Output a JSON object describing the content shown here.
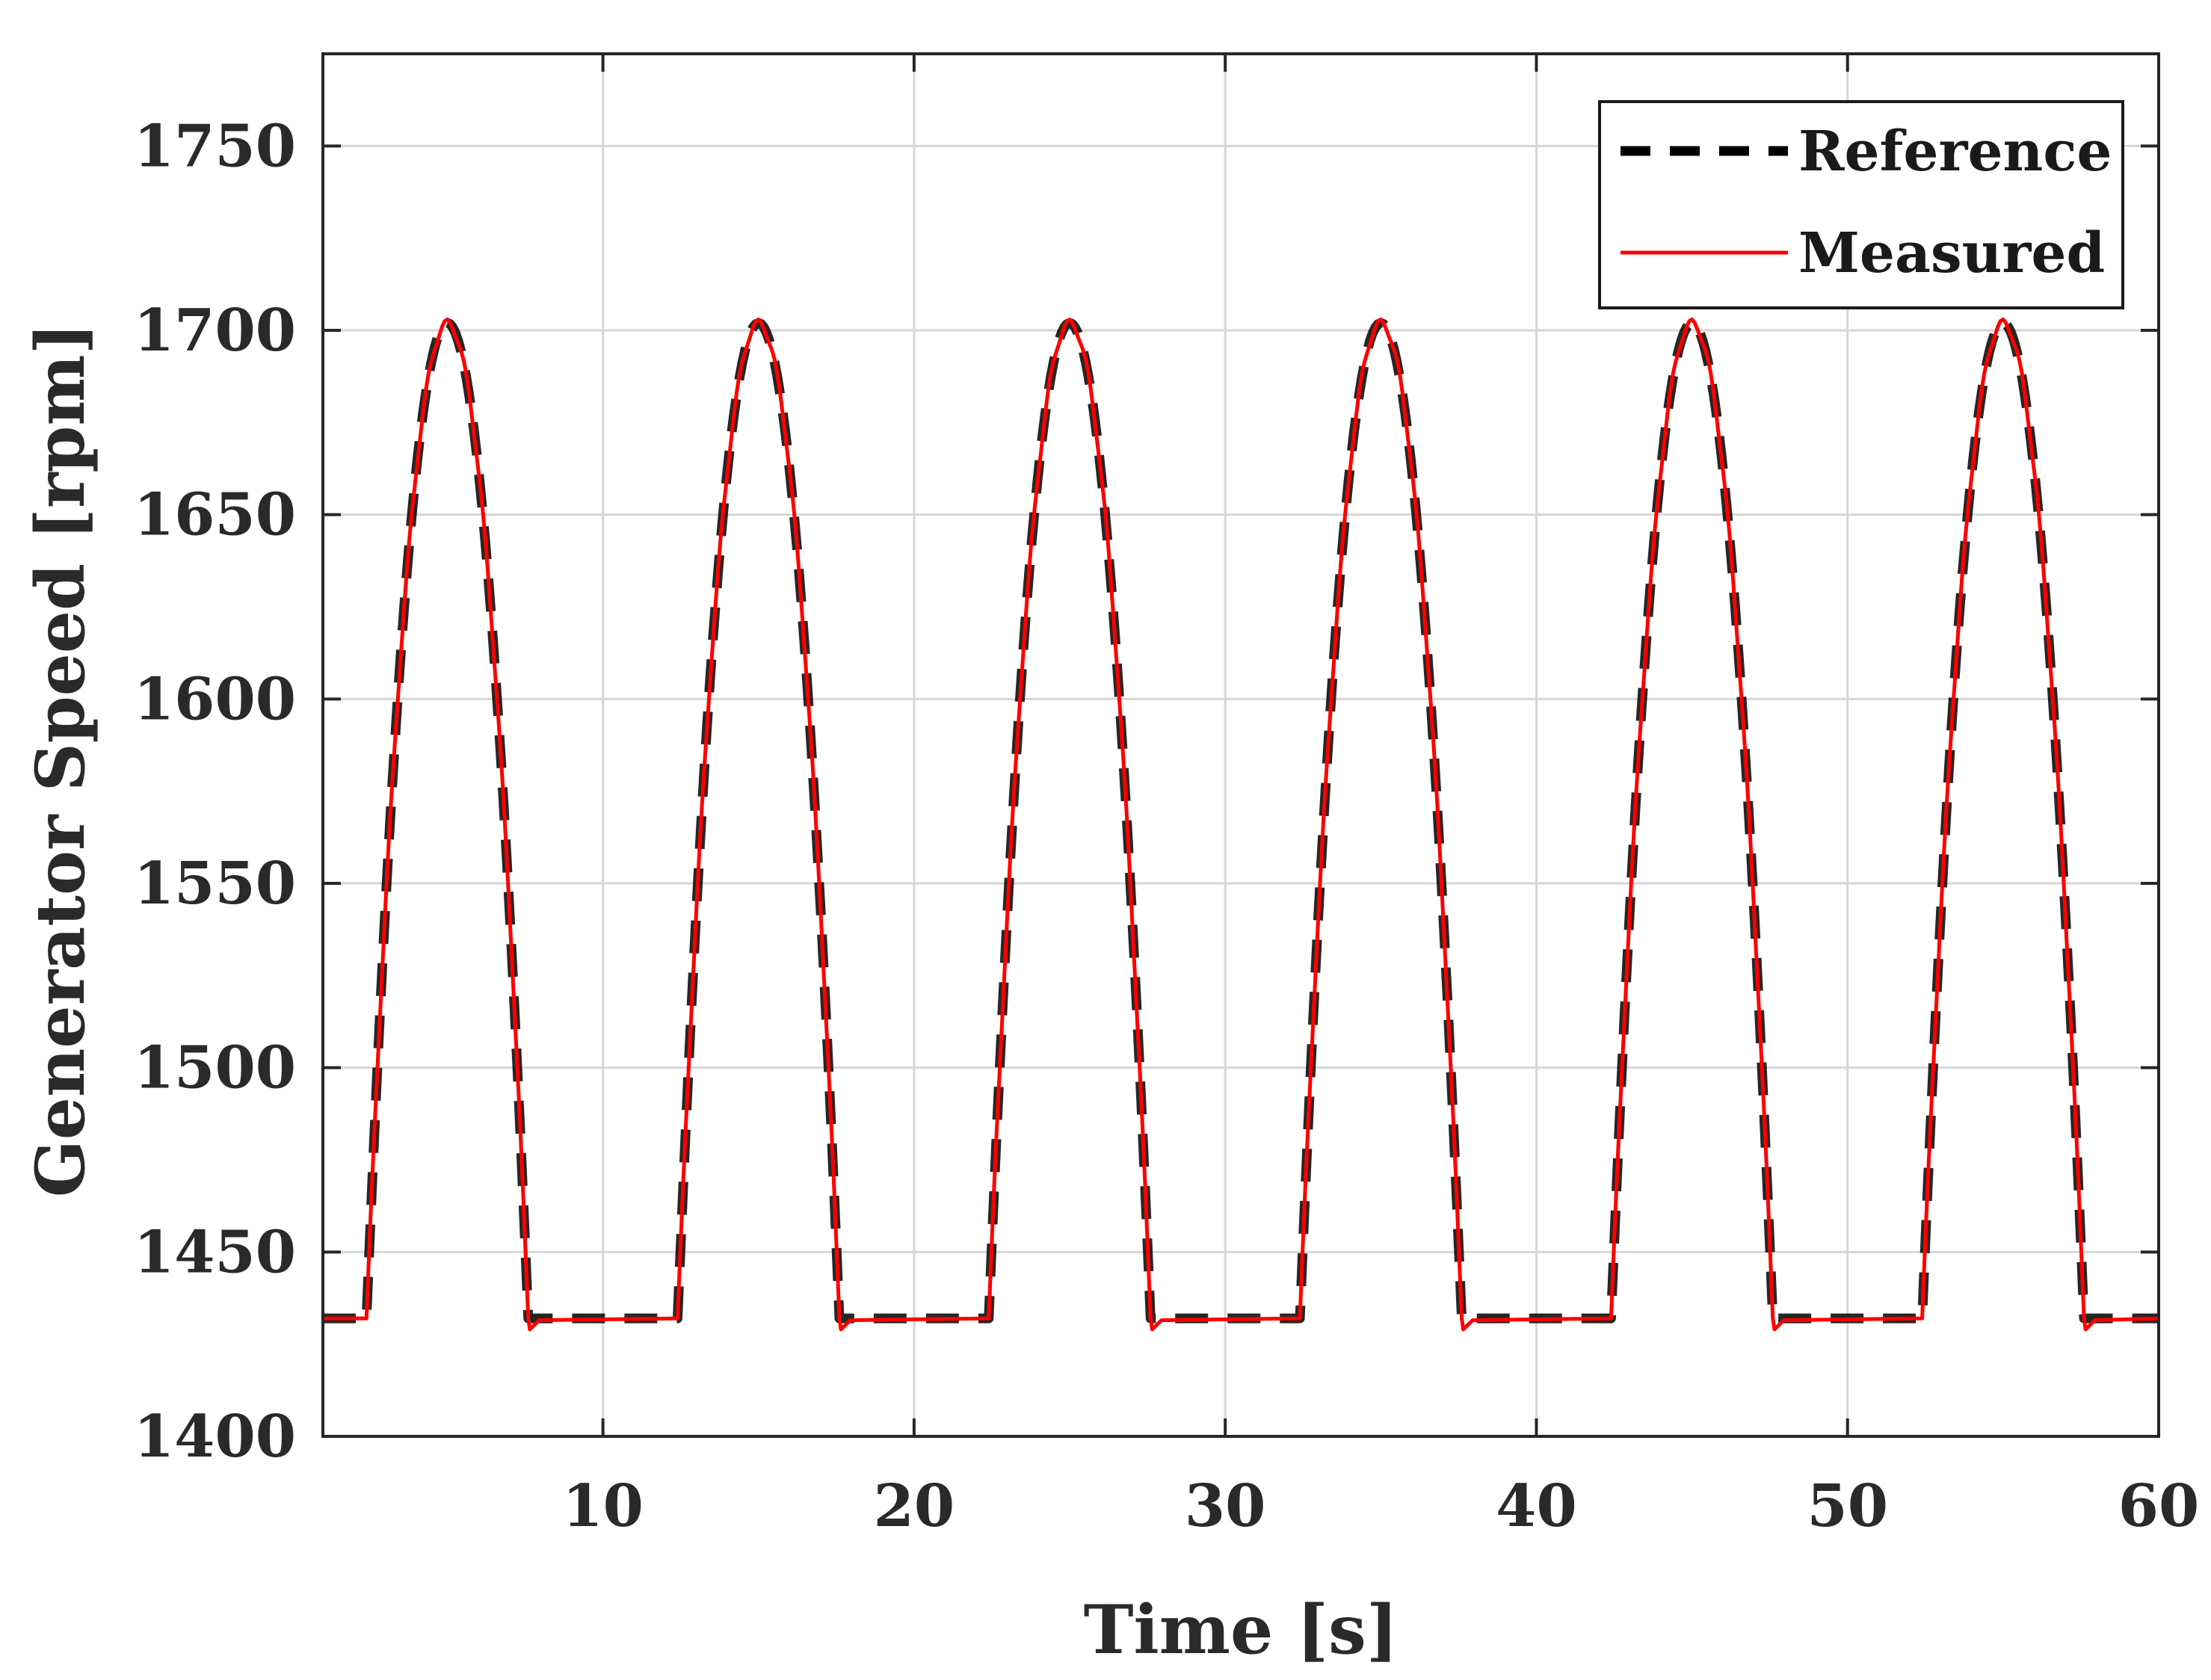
{
  "chart_data": {
    "type": "line",
    "title": "",
    "xlabel": "Time [s]",
    "ylabel": "Generator Speed [rpm]",
    "xlim": [
      1,
      60
    ],
    "ylim": [
      1400,
      1775
    ],
    "xticks": [
      10,
      20,
      30,
      40,
      50,
      60
    ],
    "yticks": [
      1400,
      1450,
      1500,
      1550,
      1600,
      1650,
      1700,
      1750
    ],
    "xtick_labels": [
      "10",
      "20",
      "30",
      "40",
      "50",
      "60"
    ],
    "ytick_labels": [
      "1400",
      "1450",
      "1500",
      "1550",
      "1600",
      "1650",
      "1700",
      "1750"
    ],
    "grid": true,
    "legend_position": "top-right",
    "pattern": {
      "period_s": 10,
      "baseline_rpm": 1432,
      "peak_rpm": 1702,
      "rise_start_offset_s": 1.4,
      "peak_offset_s": 4.0,
      "fall_end_offset_s": 6.6,
      "first_peak_s": 5,
      "cycles": 6
    },
    "series": [
      {
        "name": "Reference",
        "style": "dashed",
        "color": "#000000",
        "x": [
          1,
          2.4,
          5,
          7.6,
          12.4,
          15,
          17.6,
          22.4,
          25,
          27.6,
          32.4,
          35,
          37.6,
          42.4,
          45,
          47.6,
          52.4,
          55,
          57.6,
          60
        ],
        "y": [
          1432,
          1432,
          1702,
          1432,
          1432,
          1702,
          1432,
          1432,
          1702,
          1432,
          1432,
          1702,
          1432,
          1432,
          1702,
          1432,
          1432,
          1702,
          1432,
          1432
        ]
      },
      {
        "name": "Measured",
        "style": "solid",
        "color": "#ff0000",
        "x": [
          1,
          2.4,
          5,
          7.6,
          12.4,
          15,
          17.6,
          22.4,
          25,
          27.6,
          32.4,
          35,
          37.6,
          42.4,
          45,
          47.6,
          52.4,
          55,
          57.6,
          60
        ],
        "y": [
          1432,
          1432,
          1702,
          1432,
          1432,
          1702,
          1432,
          1432,
          1702,
          1432,
          1432,
          1702,
          1432,
          1432,
          1702,
          1432,
          1432,
          1702,
          1432,
          1432
        ]
      }
    ],
    "legend": [
      {
        "label": "Reference",
        "color": "#000000",
        "style": "dashed"
      },
      {
        "label": "Measured",
        "color": "#ff0000",
        "style": "solid"
      }
    ]
  }
}
